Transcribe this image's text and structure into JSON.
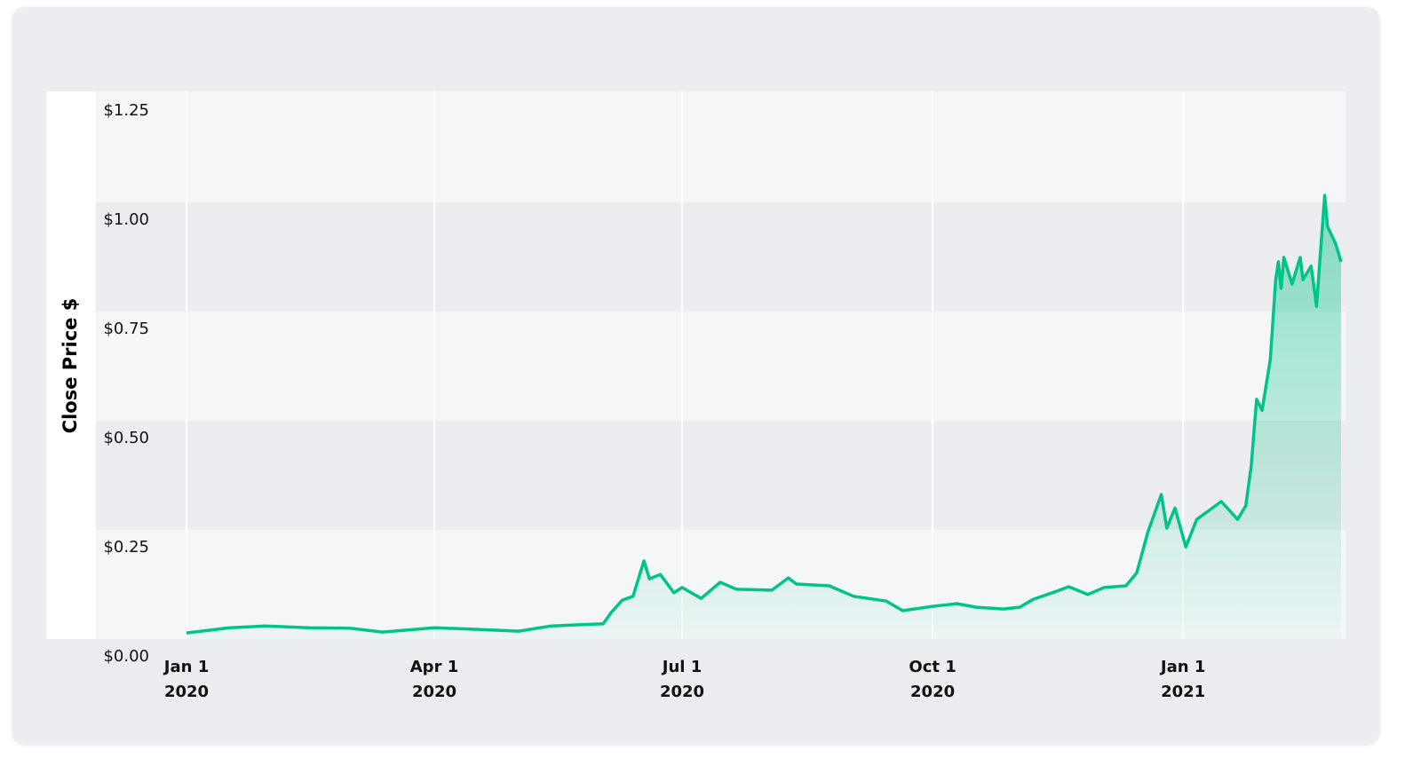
{
  "chart_data": {
    "type": "area",
    "title": "",
    "xlabel": "",
    "ylabel": "Close Price $",
    "ylim": [
      0,
      1.25
    ],
    "xlim": [
      "2020-01-01",
      "2021-02-28"
    ],
    "grid": true,
    "line_color": "#00c38a",
    "y_ticks": [
      {
        "value": 0,
        "label": "$0.00"
      },
      {
        "value": 0.25,
        "label": "$0.25"
      },
      {
        "value": 0.5,
        "label": "$0.50"
      },
      {
        "value": 0.75,
        "label": "$0.75"
      },
      {
        "value": 1.0,
        "label": "$1.00"
      },
      {
        "value": 1.25,
        "label": "$1.25"
      }
    ],
    "x_ticks": [
      {
        "date": "2020-01-01",
        "label": "Jan 1",
        "year": "2020"
      },
      {
        "date": "2020-04-01",
        "label": "Apr 1",
        "year": "2020"
      },
      {
        "date": "2020-07-01",
        "label": "Jul 1",
        "year": "2020"
      },
      {
        "date": "2020-10-01",
        "label": "Oct 1",
        "year": "2020"
      },
      {
        "date": "2021-01-01",
        "label": "Jan 1",
        "year": "2021"
      }
    ],
    "points": [
      [
        "2020-01-01",
        0.014
      ],
      [
        "2020-01-17",
        0.026
      ],
      [
        "2020-01-30",
        0.03
      ],
      [
        "2020-02-15",
        0.026
      ],
      [
        "2020-03-01",
        0.025
      ],
      [
        "2020-03-13",
        0.016
      ],
      [
        "2020-04-01",
        0.026
      ],
      [
        "2020-04-18",
        0.022
      ],
      [
        "2020-05-02",
        0.018
      ],
      [
        "2020-05-14",
        0.03
      ],
      [
        "2020-06-02",
        0.035
      ],
      [
        "2020-06-05",
        0.061
      ],
      [
        "2020-06-09",
        0.089
      ],
      [
        "2020-06-13",
        0.098
      ],
      [
        "2020-06-17",
        0.179
      ],
      [
        "2020-06-19",
        0.138
      ],
      [
        "2020-06-23",
        0.148
      ],
      [
        "2020-06-28",
        0.106
      ],
      [
        "2020-07-01",
        0.118
      ],
      [
        "2020-07-08",
        0.093
      ],
      [
        "2020-07-15",
        0.13
      ],
      [
        "2020-07-21",
        0.114
      ],
      [
        "2020-08-03",
        0.112
      ],
      [
        "2020-08-09",
        0.14
      ],
      [
        "2020-08-12",
        0.126
      ],
      [
        "2020-08-24",
        0.122
      ],
      [
        "2020-09-02",
        0.098
      ],
      [
        "2020-09-14",
        0.087
      ],
      [
        "2020-09-20",
        0.065
      ],
      [
        "2020-10-01",
        0.075
      ],
      [
        "2020-10-10",
        0.081
      ],
      [
        "2020-10-17",
        0.073
      ],
      [
        "2020-10-27",
        0.069
      ],
      [
        "2020-11-02",
        0.073
      ],
      [
        "2020-11-07",
        0.091
      ],
      [
        "2020-11-14",
        0.106
      ],
      [
        "2020-11-20",
        0.12
      ],
      [
        "2020-11-27",
        0.102
      ],
      [
        "2020-12-03",
        0.118
      ],
      [
        "2020-12-11",
        0.122
      ],
      [
        "2020-12-15",
        0.152
      ],
      [
        "2020-12-19",
        0.244
      ],
      [
        "2020-12-24",
        0.331
      ],
      [
        "2020-12-26",
        0.254
      ],
      [
        "2020-12-29",
        0.3
      ],
      [
        "2021-01-02",
        0.211
      ],
      [
        "2021-01-06",
        0.274
      ],
      [
        "2021-01-15",
        0.315
      ],
      [
        "2021-01-21",
        0.274
      ],
      [
        "2021-01-24",
        0.305
      ],
      [
        "2021-01-26",
        0.396
      ],
      [
        "2021-01-28",
        0.549
      ],
      [
        "2021-01-30",
        0.524
      ],
      [
        "2021-02-02",
        0.64
      ],
      [
        "2021-02-04",
        0.823
      ],
      [
        "2021-02-05",
        0.864
      ],
      [
        "2021-02-06",
        0.803
      ],
      [
        "2021-02-07",
        0.874
      ],
      [
        "2021-02-10",
        0.813
      ],
      [
        "2021-02-13",
        0.874
      ],
      [
        "2021-02-14",
        0.823
      ],
      [
        "2021-02-17",
        0.854
      ],
      [
        "2021-02-19",
        0.762
      ],
      [
        "2021-02-20",
        0.85
      ],
      [
        "2021-02-22",
        1.016
      ],
      [
        "2021-02-23",
        0.945
      ],
      [
        "2021-02-26",
        0.905
      ],
      [
        "2021-02-28",
        0.864
      ]
    ]
  }
}
